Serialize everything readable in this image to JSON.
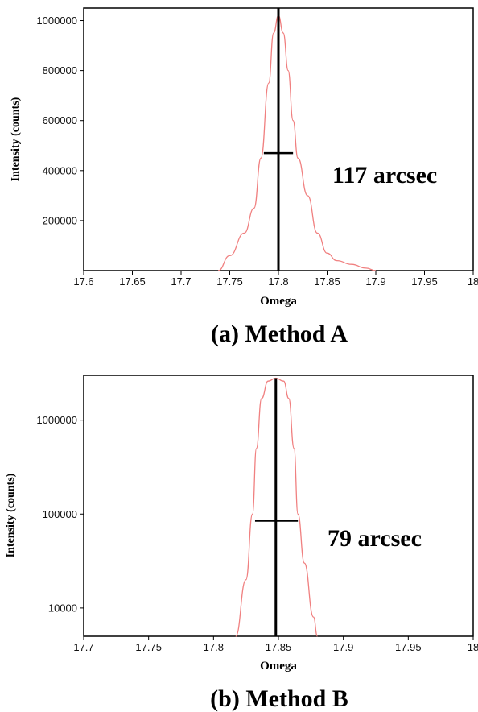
{
  "chart_data": [
    {
      "id": "a",
      "type": "line",
      "xlabel": "Omega",
      "ylabel": "Intensity (counts)",
      "annotation": "117 arcsec",
      "caption": "(a) Method A",
      "xlim": [
        17.6,
        18.0
      ],
      "ylim": [
        0,
        1050000
      ],
      "yscale": "linear",
      "grid": false,
      "series_color": "#f08080",
      "x_ticks": [
        17.6,
        17.65,
        17.7,
        17.75,
        17.8,
        17.85,
        17.9,
        17.95,
        18.0
      ],
      "x_tick_labels": [
        "17.6",
        "17.65",
        "17.7",
        "17.75",
        "17.8",
        "17.85",
        "17.9",
        "17.95",
        "18"
      ],
      "y_ticks": [
        200000,
        400000,
        600000,
        800000,
        1000000
      ],
      "y_tick_labels": [
        "200000",
        "400000",
        "600000",
        "800000",
        "1000000"
      ],
      "series": [
        {
          "x": [
            17.738,
            17.75,
            17.765,
            17.775,
            17.782,
            17.79,
            17.795,
            17.8,
            17.805,
            17.81,
            17.815,
            17.82,
            17.83,
            17.84,
            17.85,
            17.86,
            17.875,
            17.89,
            17.9
          ],
          "y": [
            0,
            60000,
            150000,
            250000,
            450000,
            750000,
            950000,
            1020000,
            950000,
            800000,
            600000,
            450000,
            300000,
            150000,
            70000,
            40000,
            25000,
            10000,
            0
          ]
        }
      ],
      "peak_x": 17.8,
      "peak_y": 1050000,
      "fwhm_x": [
        17.785,
        17.815
      ],
      "fwhm_y": 470000
    },
    {
      "id": "b",
      "type": "line",
      "xlabel": "Omega",
      "ylabel": "Intensity (counts)",
      "annotation": "79 arcsec",
      "caption": "(b) Method B",
      "xlim": [
        17.7,
        18.0
      ],
      "ylim": [
        5000,
        3000000
      ],
      "yscale": "log",
      "grid": false,
      "series_color": "#f08080",
      "x_ticks": [
        17.7,
        17.75,
        17.8,
        17.85,
        17.9,
        17.95,
        18.0
      ],
      "x_tick_labels": [
        "17.7",
        "17.75",
        "17.8",
        "17.85",
        "17.9",
        "17.95",
        "18"
      ],
      "y_ticks": [
        10000,
        100000,
        1000000
      ],
      "y_tick_labels": [
        "10000",
        "100000",
        "1000000"
      ],
      "series": [
        {
          "x": [
            17.817,
            17.825,
            17.83,
            17.833,
            17.837,
            17.842,
            17.848,
            17.854,
            17.858,
            17.862,
            17.865,
            17.87,
            17.877,
            17.88
          ],
          "y": [
            5000,
            20000,
            100000,
            500000,
            1700000,
            2600000,
            2800000,
            2600000,
            1700000,
            500000,
            100000,
            30000,
            8000,
            5000
          ]
        }
      ],
      "peak_x": 17.848,
      "peak_y": 2800000,
      "fwhm_x": [
        17.832,
        17.865
      ],
      "fwhm_y": 85000
    }
  ]
}
